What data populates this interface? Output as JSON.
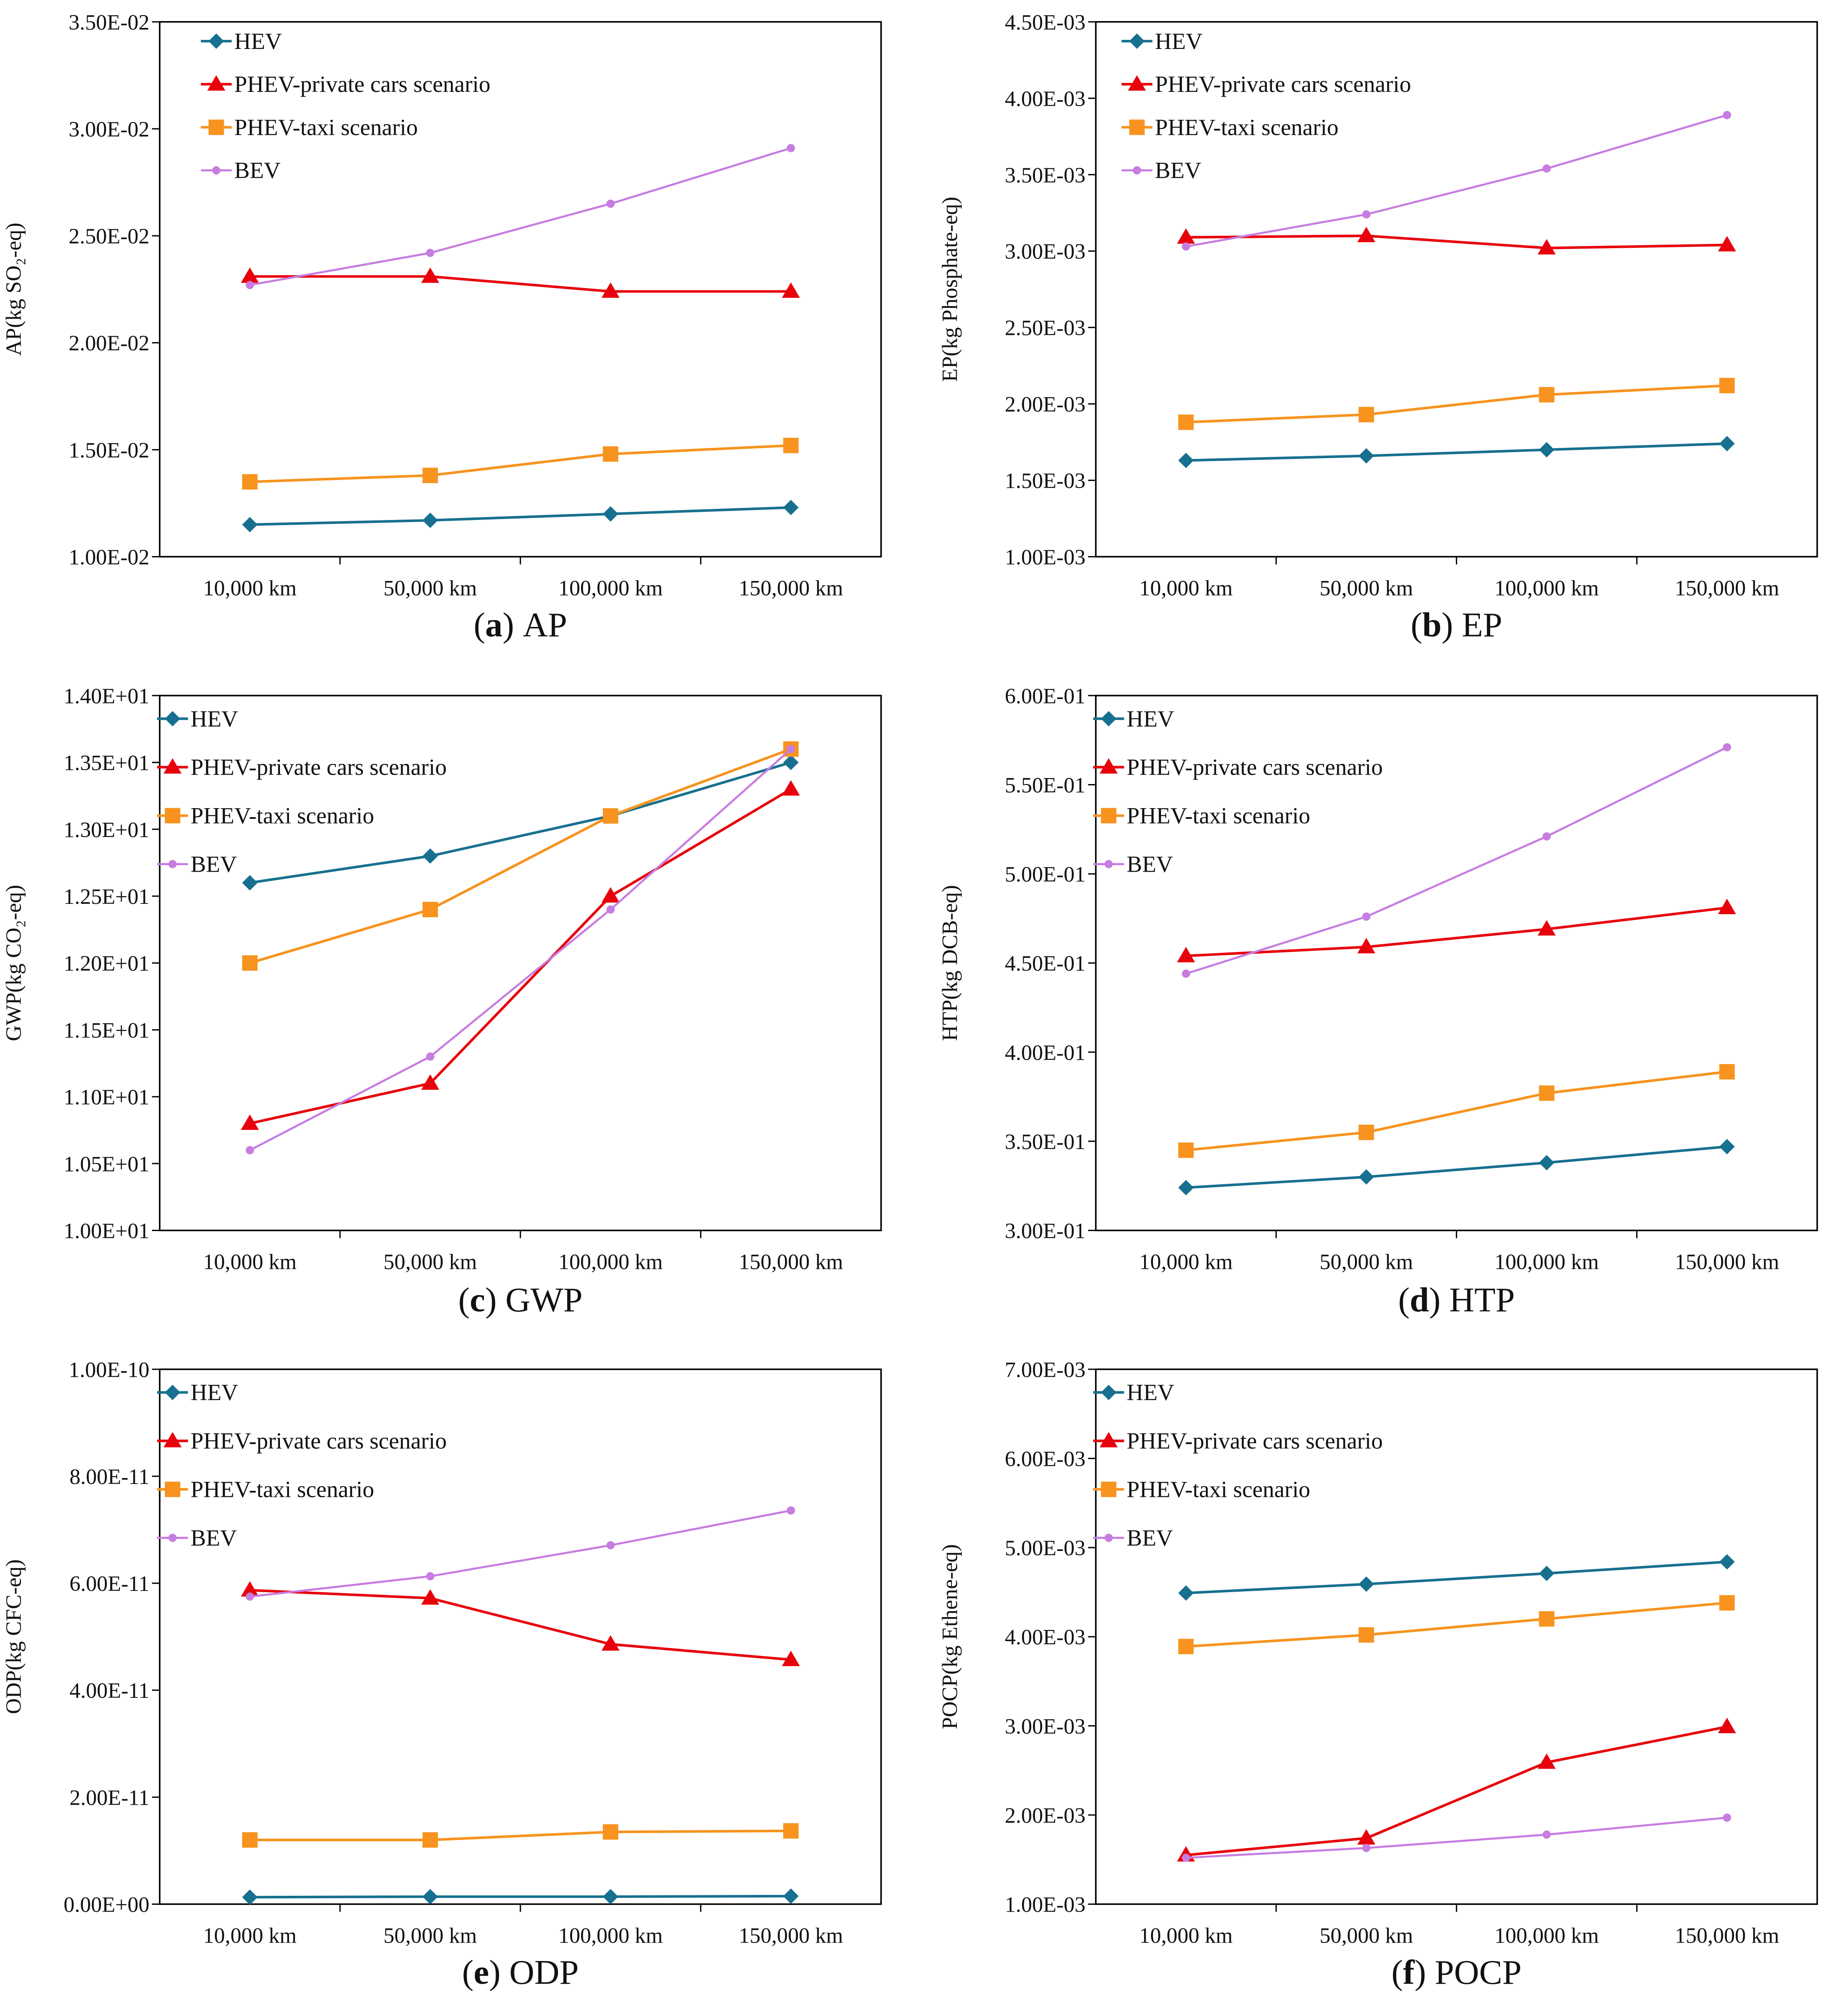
{
  "colors": {
    "HEV": "#17708F",
    "PHEV-private": "#E8000B",
    "PHEV-taxi": "#F7931E",
    "BEV": "#C77CE0"
  },
  "chart_data": [
    {
      "type": "line",
      "panel": "a",
      "title": "AP",
      "ylabel": "AP(kg SO₂-eq)",
      "xlabel": "",
      "categories": [
        "10,000 km",
        "50,000 km",
        "100,000 km",
        "150,000 km"
      ],
      "ylim": [
        0.01,
        0.035
      ],
      "yticks": [
        0.01,
        0.015,
        0.02,
        0.025,
        0.03,
        0.035
      ],
      "ytick_labels": [
        "1.00E-02",
        "1.50E-02",
        "2.00E-02",
        "2.50E-02",
        "3.00E-02",
        "3.50E-02"
      ],
      "legend_position": "top-left",
      "series": [
        {
          "name": "HEV",
          "marker": "diamond",
          "values": [
            0.0115,
            0.0117,
            0.012,
            0.0123
          ]
        },
        {
          "name": "PHEV-private cars scenario",
          "marker": "triangle",
          "values": [
            0.0231,
            0.0231,
            0.0224,
            0.0224
          ]
        },
        {
          "name": "PHEV-taxi scenario",
          "marker": "square",
          "values": [
            0.0135,
            0.0138,
            0.0148,
            0.0152
          ]
        },
        {
          "name": "BEV",
          "marker": "dot",
          "values": [
            0.0227,
            0.0242,
            0.0265,
            0.0291
          ]
        }
      ]
    },
    {
      "type": "line",
      "panel": "b",
      "title": "EP",
      "ylabel": "EP(kg Phosphate-eq)",
      "xlabel": "",
      "categories": [
        "10,000 km",
        "50,000 km",
        "100,000 km",
        "150,000 km"
      ],
      "ylim": [
        0.001,
        0.0045
      ],
      "yticks": [
        0.001,
        0.0015,
        0.002,
        0.0025,
        0.003,
        0.0035,
        0.004,
        0.0045
      ],
      "ytick_labels": [
        "1.00E-03",
        "1.50E-03",
        "2.00E-03",
        "2.50E-03",
        "3.00E-03",
        "3.50E-03",
        "4.00E-03",
        "4.50E-03"
      ],
      "legend_position": "top-left",
      "series": [
        {
          "name": "HEV",
          "marker": "diamond",
          "values": [
            0.00163,
            0.00166,
            0.0017,
            0.00174
          ]
        },
        {
          "name": "PHEV-private cars scenario",
          "marker": "triangle",
          "values": [
            0.00309,
            0.0031,
            0.00302,
            0.00304
          ]
        },
        {
          "name": "PHEV-taxi scenario",
          "marker": "square",
          "values": [
            0.00188,
            0.00193,
            0.00206,
            0.00212
          ]
        },
        {
          "name": "BEV",
          "marker": "dot",
          "values": [
            0.00303,
            0.00324,
            0.00354,
            0.00389
          ]
        }
      ]
    },
    {
      "type": "line",
      "panel": "c",
      "title": "GWP",
      "ylabel": "GWP(kg  CO₂-eq)",
      "xlabel": "",
      "categories": [
        "10,000 km",
        "50,000 km",
        "100,000 km",
        "150,000 km"
      ],
      "ylim": [
        10,
        14
      ],
      "yticks": [
        10,
        10.5,
        11,
        11.5,
        12,
        12.5,
        13,
        13.5,
        14
      ],
      "ytick_labels": [
        "1.00E+01",
        "1.05E+01",
        "1.10E+01",
        "1.15E+01",
        "1.20E+01",
        "1.25E+01",
        "1.30E+01",
        "1.35E+01",
        "1.40E+01"
      ],
      "legend_position": "top-left",
      "series": [
        {
          "name": "HEV",
          "marker": "diamond",
          "values": [
            12.6,
            12.8,
            13.1,
            13.5
          ]
        },
        {
          "name": "PHEV-private cars scenario",
          "marker": "triangle",
          "values": [
            10.8,
            11.1,
            12.5,
            13.3
          ]
        },
        {
          "name": "PHEV-taxi scenario",
          "marker": "square",
          "values": [
            12.0,
            12.4,
            13.1,
            13.6
          ]
        },
        {
          "name": "BEV",
          "marker": "dot",
          "values": [
            10.6,
            11.3,
            12.4,
            13.6
          ]
        }
      ]
    },
    {
      "type": "line",
      "panel": "d",
      "title": "HTP",
      "ylabel": "HTP(kg DCB-eq)",
      "xlabel": "",
      "categories": [
        "10,000 km",
        "50,000 km",
        "100,000 km",
        "150,000 km"
      ],
      "ylim": [
        0.3,
        0.6
      ],
      "yticks": [
        0.3,
        0.35,
        0.4,
        0.45,
        0.5,
        0.55,
        0.6
      ],
      "ytick_labels": [
        "3.00E-01",
        "3.50E-01",
        "4.00E-01",
        "4.50E-01",
        "5.00E-01",
        "5.50E-01",
        "6.00E-01"
      ],
      "legend_position": "top-left",
      "series": [
        {
          "name": "HEV",
          "marker": "diamond",
          "values": [
            0.324,
            0.33,
            0.338,
            0.347
          ]
        },
        {
          "name": "PHEV-private cars scenario",
          "marker": "triangle",
          "values": [
            0.454,
            0.459,
            0.469,
            0.481
          ]
        },
        {
          "name": "PHEV-taxi scenario",
          "marker": "square",
          "values": [
            0.345,
            0.355,
            0.377,
            0.389
          ]
        },
        {
          "name": "BEV",
          "marker": "dot",
          "values": [
            0.444,
            0.476,
            0.521,
            0.571
          ]
        }
      ]
    },
    {
      "type": "line",
      "panel": "e",
      "title": "ODP",
      "ylabel": "ODP(kg CFC-eq)",
      "xlabel": "",
      "categories": [
        "10,000 km",
        "50,000 km",
        "100,000 km",
        "150,000 km"
      ],
      "ylim": [
        0,
        1e-10
      ],
      "yticks": [
        0,
        2e-11,
        4e-11,
        6e-11,
        8e-11,
        1e-10
      ],
      "ytick_labels": [
        "0.00E+00",
        "2.00E-11",
        "4.00E-11",
        "6.00E-11",
        "8.00E-11",
        "1.00E-10"
      ],
      "legend_position": "top-left",
      "series": [
        {
          "name": "HEV",
          "marker": "diamond",
          "values": [
            1.3e-12,
            1.4e-12,
            1.4e-12,
            1.5e-12
          ]
        },
        {
          "name": "PHEV-private cars scenario",
          "marker": "triangle",
          "values": [
            5.87e-11,
            5.72e-11,
            4.86e-11,
            4.57e-11
          ]
        },
        {
          "name": "PHEV-taxi scenario",
          "marker": "square",
          "values": [
            1.2e-11,
            1.2e-11,
            1.35e-11,
            1.37e-11
          ]
        },
        {
          "name": "BEV",
          "marker": "dot",
          "values": [
            5.75e-11,
            6.13e-11,
            6.71e-11,
            7.36e-11
          ]
        }
      ]
    },
    {
      "type": "line",
      "panel": "f",
      "title": "POCP",
      "ylabel": "POCP(kg Ethene-eq)",
      "xlabel": "",
      "categories": [
        "10,000 km",
        "50,000 km",
        "100,000 km",
        "150,000 km"
      ],
      "ylim": [
        0.001,
        0.007
      ],
      "yticks": [
        0.001,
        0.002,
        0.003,
        0.004,
        0.005,
        0.006,
        0.007
      ],
      "ytick_labels": [
        "1.00E-03",
        "2.00E-03",
        "3.00E-03",
        "4.00E-03",
        "5.00E-03",
        "6.00E-03",
        "7.00E-03"
      ],
      "legend_position": "top-left",
      "series": [
        {
          "name": "HEV",
          "marker": "diamond",
          "values": [
            0.00449,
            0.00459,
            0.00471,
            0.00484
          ]
        },
        {
          "name": "PHEV-private cars scenario",
          "marker": "triangle",
          "values": [
            0.00155,
            0.00174,
            0.00259,
            0.00299
          ]
        },
        {
          "name": "PHEV-taxi scenario",
          "marker": "square",
          "values": [
            0.00389,
            0.00402,
            0.0042,
            0.00438
          ]
        },
        {
          "name": "BEV",
          "marker": "dot",
          "values": [
            0.00152,
            0.00163,
            0.00178,
            0.00197
          ]
        }
      ]
    }
  ]
}
